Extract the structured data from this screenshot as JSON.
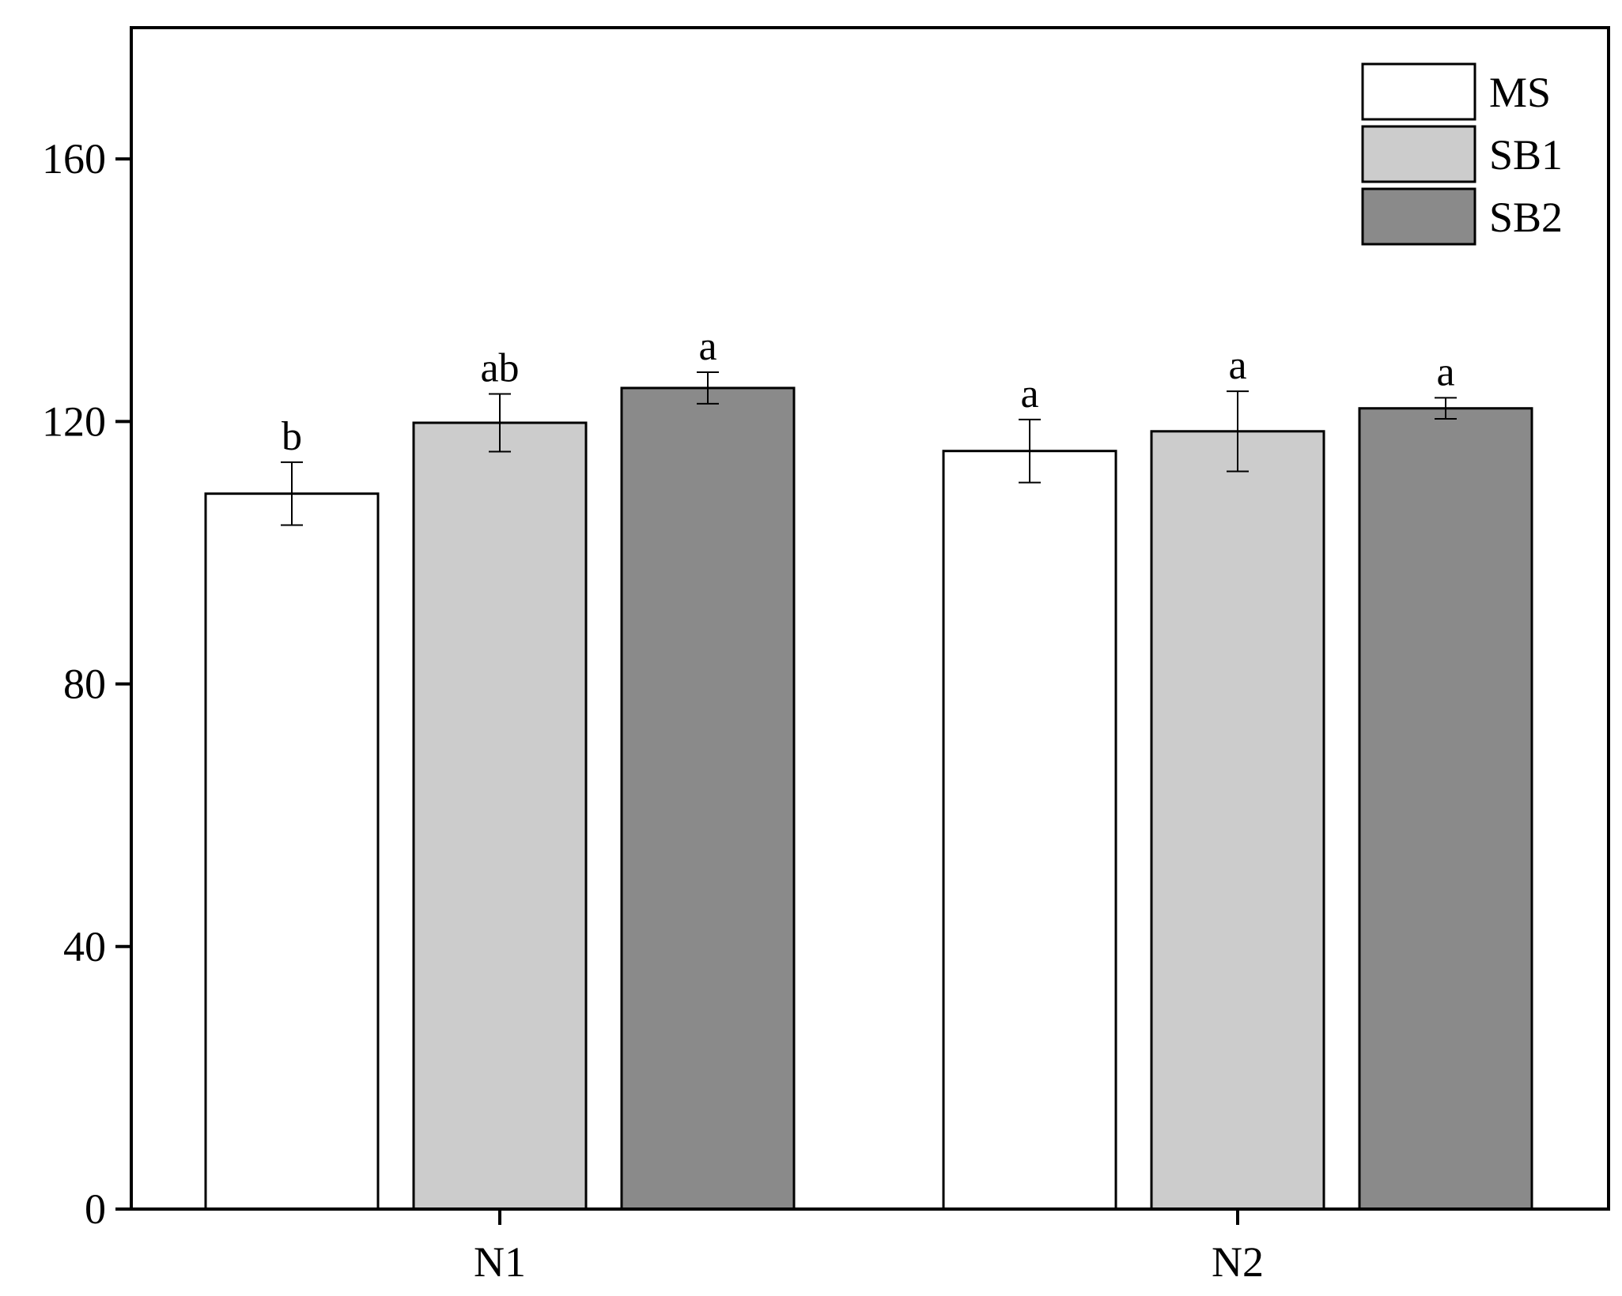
{
  "chart_data": {
    "type": "bar",
    "title": "",
    "xlabel": "",
    "ylabel": "",
    "categories": [
      "N1",
      "N2"
    ],
    "ylim": [
      0,
      180
    ],
    "yticks": [
      0,
      40,
      80,
      120,
      160
    ],
    "legend_position": "top-right",
    "grid": false,
    "series": [
      {
        "name": "MS",
        "color": "#ffffff",
        "values": [
          109,
          115.5
        ],
        "errors": [
          4.8,
          4.8
        ],
        "letters": [
          "b",
          "a"
        ]
      },
      {
        "name": "SB1",
        "color": "#cccccc",
        "values": [
          119.8,
          118.5
        ],
        "errors": [
          4.4,
          6.1
        ],
        "letters": [
          "ab",
          "a"
        ]
      },
      {
        "name": "SB2",
        "color": "#8a8a8a",
        "values": [
          125.1,
          122
        ],
        "errors": [
          2.4,
          1.6
        ],
        "letters": [
          "a",
          "a"
        ]
      }
    ]
  }
}
